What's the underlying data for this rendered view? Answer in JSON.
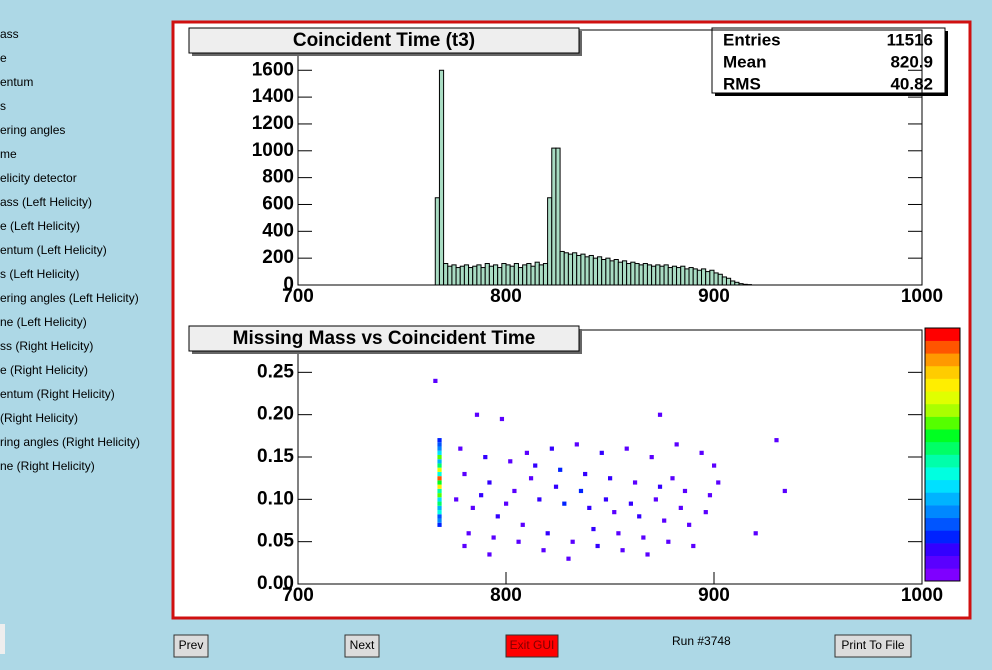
{
  "sidebar": {
    "items": [
      "ass",
      "e",
      "entum",
      "s",
      "ering angles",
      "me",
      "elicity detector",
      "ass (Left Helicity)",
      "e (Left Helicity)",
      "entum (Left Helicity)",
      "s (Left Helicity)",
      "ering angles (Left Helicity)",
      "ne (Left Helicity)",
      "ss (Right Helicity)",
      "e (Right Helicity)",
      "entum (Right Helicity)",
      "(Right Helicity)",
      "ring angles (Right Helicity)",
      "ne (Right Helicity)"
    ]
  },
  "chart_data": [
    {
      "type": "histogram",
      "title": "Coincident Time (t3)",
      "color": "#a9dcc3",
      "line_color": "#000000",
      "stats": [
        {
          "label": "Entries",
          "value": 11516
        },
        {
          "label": "Mean",
          "value": 820.9
        },
        {
          "label": "RMS",
          "value": 40.82
        }
      ],
      "bins": [
        766,
        768,
        770,
        772,
        774,
        776,
        778,
        780,
        782,
        784,
        786,
        788,
        790,
        792,
        794,
        796,
        798,
        800,
        802,
        804,
        806,
        808,
        810,
        812,
        814,
        816,
        818,
        820,
        822,
        824,
        826,
        828,
        830,
        832,
        834,
        836,
        838,
        840,
        842,
        844,
        846,
        848,
        850,
        852,
        854,
        856,
        858,
        860,
        862,
        864,
        866,
        868,
        870,
        872,
        874,
        876,
        878,
        880,
        882,
        884,
        886,
        888,
        890,
        892,
        894,
        896,
        898,
        900,
        902,
        904,
        906,
        908,
        910,
        912,
        914,
        916,
        918
      ],
      "values": [
        650,
        1600,
        160,
        140,
        150,
        130,
        140,
        150,
        130,
        140,
        150,
        130,
        160,
        140,
        150,
        130,
        160,
        150,
        140,
        160,
        130,
        150,
        160,
        140,
        170,
        150,
        160,
        650,
        1020,
        1020,
        250,
        240,
        230,
        240,
        220,
        230,
        210,
        220,
        200,
        210,
        190,
        200,
        180,
        190,
        170,
        180,
        160,
        170,
        160,
        150,
        160,
        150,
        140,
        150,
        140,
        150,
        130,
        140,
        130,
        140,
        120,
        130,
        120,
        110,
        120,
        100,
        110,
        90,
        80,
        60,
        50,
        30,
        20,
        10,
        5,
        3
      ],
      "xlim": [
        700,
        1000
      ],
      "xticks": [
        700,
        800,
        900,
        1000
      ],
      "ylim": [
        0,
        1900
      ],
      "yticks": [
        0,
        200,
        400,
        600,
        800,
        1000,
        1200,
        1400,
        1600
      ]
    },
    {
      "type": "heatmap",
      "title": "Missing Mass vs Coincident Time",
      "x": [
        768,
        768,
        768,
        768,
        768,
        768,
        768,
        768,
        768,
        768,
        768,
        768,
        768,
        768,
        768,
        768,
        768,
        768,
        768,
        768,
        768,
        766,
        786,
        798,
        874,
        930,
        880,
        934,
        920,
        778,
        790,
        802,
        814,
        826,
        838,
        850,
        862,
        874,
        886,
        898,
        780,
        792,
        804,
        816,
        828,
        840,
        852,
        864,
        876,
        888,
        784,
        796,
        808,
        820,
        832,
        844,
        856,
        868,
        810,
        822,
        834,
        846,
        858,
        870,
        882,
        894,
        900,
        776,
        788,
        800,
        812,
        824,
        836,
        848,
        860,
        872,
        884,
        896,
        782,
        794,
        806,
        818,
        830,
        842,
        854,
        866,
        878,
        890,
        902,
        780,
        792
      ],
      "y": [
        0.07,
        0.075,
        0.08,
        0.085,
        0.09,
        0.095,
        0.1,
        0.105,
        0.11,
        0.115,
        0.12,
        0.125,
        0.13,
        0.135,
        0.14,
        0.145,
        0.15,
        0.155,
        0.16,
        0.165,
        0.17,
        0.24,
        0.2,
        0.195,
        0.2,
        0.17,
        0.125,
        0.11,
        0.06,
        0.16,
        0.15,
        0.145,
        0.14,
        0.135,
        0.13,
        0.125,
        0.12,
        0.115,
        0.11,
        0.105,
        0.13,
        0.12,
        0.11,
        0.1,
        0.095,
        0.09,
        0.085,
        0.08,
        0.075,
        0.07,
        0.09,
        0.08,
        0.07,
        0.06,
        0.05,
        0.045,
        0.04,
        0.035,
        0.155,
        0.16,
        0.165,
        0.155,
        0.16,
        0.15,
        0.165,
        0.155,
        0.14,
        0.1,
        0.105,
        0.095,
        0.125,
        0.115,
        0.11,
        0.1,
        0.095,
        0.1,
        0.09,
        0.085,
        0.06,
        0.055,
        0.05,
        0.04,
        0.03,
        0.065,
        0.06,
        0.055,
        0.05,
        0.045,
        0.12,
        0.045,
        0.035
      ],
      "z": [
        3,
        5,
        4,
        8,
        6,
        10,
        7,
        12,
        9,
        15,
        11,
        18,
        8,
        14,
        10,
        6,
        12,
        7,
        5,
        4,
        3,
        1,
        1,
        1,
        1,
        1,
        1,
        1,
        1,
        1,
        2,
        1,
        2,
        3,
        2,
        2,
        1,
        2,
        1,
        1,
        1,
        2,
        1,
        2,
        3,
        2,
        1,
        2,
        1,
        1,
        1,
        2,
        1,
        2,
        1,
        2,
        1,
        1,
        1,
        2,
        1,
        2,
        1,
        1,
        1,
        1,
        1,
        1,
        2,
        1,
        1,
        2,
        3,
        2,
        2,
        1,
        1,
        1,
        1,
        1,
        1,
        1,
        1,
        2,
        1,
        1,
        1,
        1,
        1,
        1,
        1
      ],
      "zlim": [
        0,
        20
      ],
      "palette": [
        "#7f00ff",
        "#5a00ff",
        "#3300ff",
        "#0022ff",
        "#0055ff",
        "#0088ff",
        "#00b3ff",
        "#00e0ff",
        "#00ffe0",
        "#00ffaa",
        "#00ff66",
        "#00ff22",
        "#55ff00",
        "#aaff00",
        "#e0ff00",
        "#ffee00",
        "#ffcc00",
        "#ff9900",
        "#ff5500",
        "#ff0000"
      ],
      "xlim": [
        700,
        1000
      ],
      "xticks": [
        700,
        800,
        900,
        1000
      ],
      "ylim": [
        0,
        0.3
      ],
      "yticks": [
        {
          "value": 0,
          "label": "0.00"
        },
        0.05,
        {
          "value": 0.1,
          "label": "0.10"
        },
        0.15,
        {
          "value": 0.2,
          "label": "0.20"
        },
        0.25
      ]
    }
  ],
  "buttons": [
    "Prev",
    "Next",
    "Exit GUI",
    "Print To File"
  ],
  "run_label": "Run #3748"
}
